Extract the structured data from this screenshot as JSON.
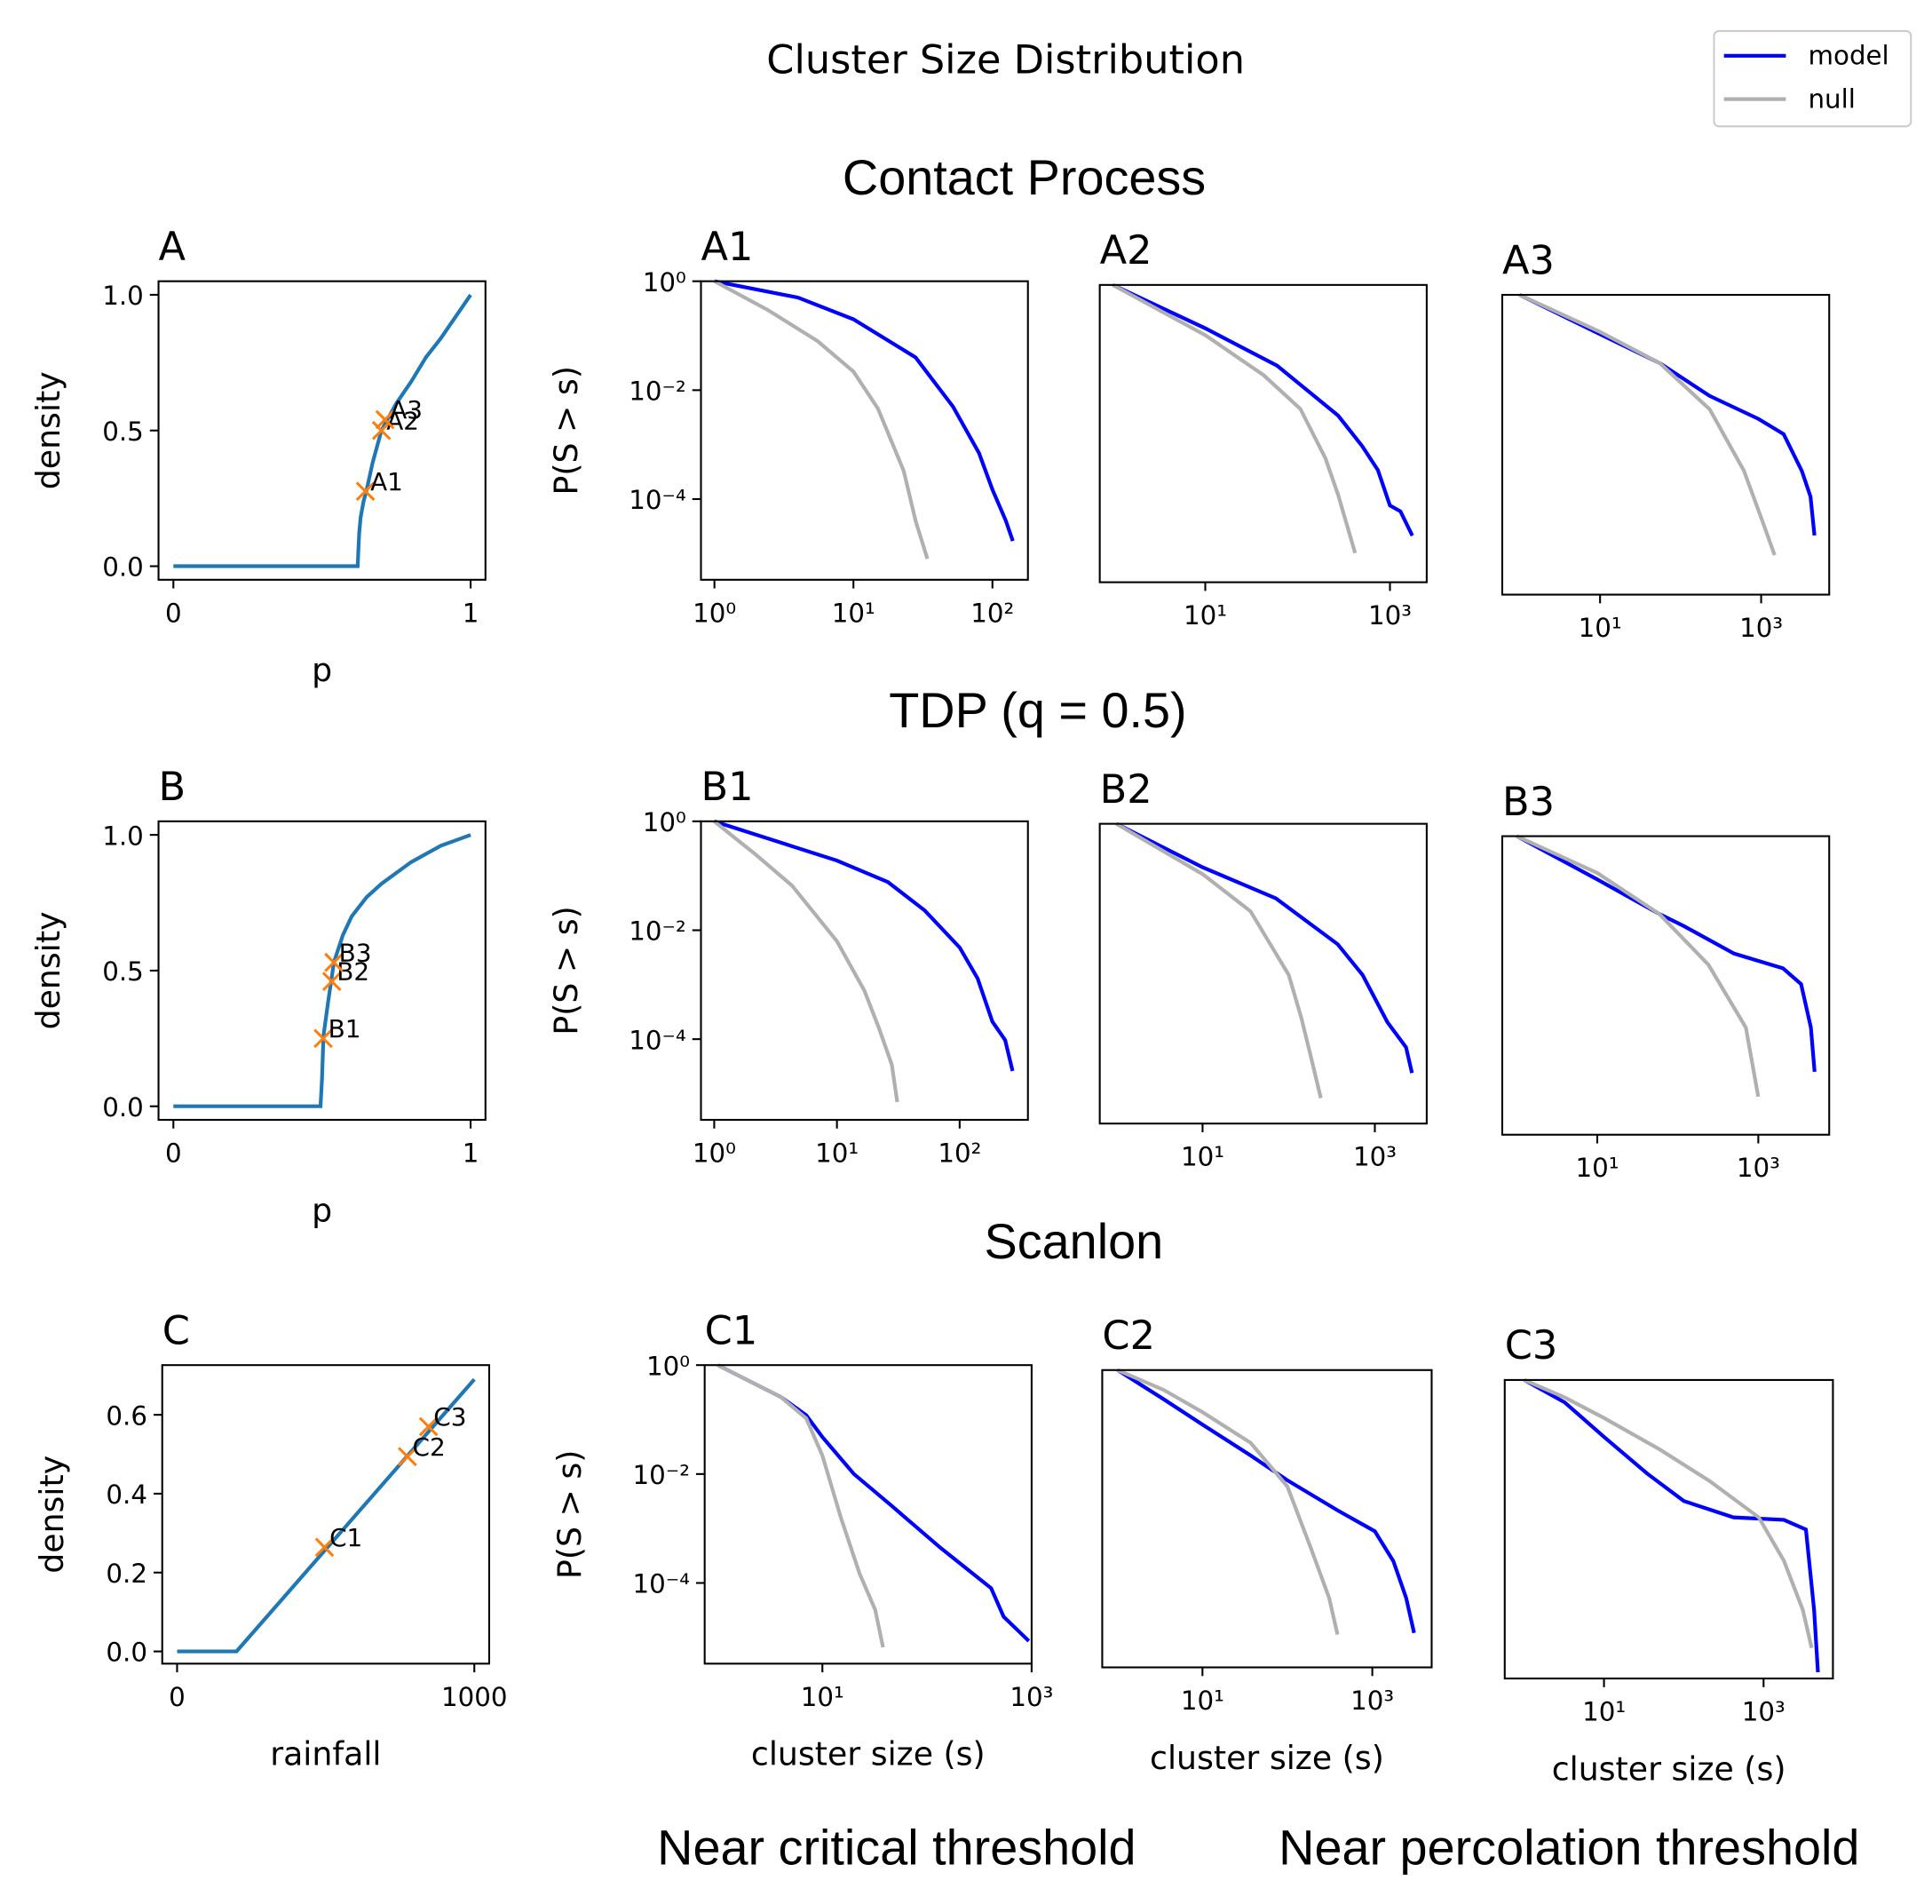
{
  "figure": {
    "title": "Cluster Size Distribution",
    "row_titles": [
      "Contact Process",
      "TDP (q = 0.5)",
      "Scanlon"
    ],
    "bottom_labels": [
      "Near critical threshold",
      "Near percolation threshold"
    ]
  },
  "chart_data": [
    {
      "type": "line",
      "title": "A",
      "xlabel": "p",
      "ylabel": "density",
      "xlim": [
        -0.05,
        1.05
      ],
      "ylim": [
        -0.05,
        1.05
      ],
      "xticks": [
        0,
        1
      ],
      "yticks": [
        {
          "value": 0,
          "label": "0.0"
        },
        0.5,
        {
          "value": 1,
          "label": "1.0"
        }
      ],
      "series": [
        {
          "color": "#1f77b4",
          "x": [
            0,
            0.62,
            0.625,
            0.63,
            0.64,
            0.65,
            0.67,
            0.7,
            0.75,
            0.8,
            0.85,
            0.9,
            0.95,
            1
          ],
          "values": [
            0,
            0,
            0.12,
            0.18,
            0.24,
            0.28,
            0.38,
            0.5,
            0.6,
            0.68,
            0.77,
            0.84,
            0.92,
            1.0
          ]
        }
      ],
      "markers": {
        "color": "#ff7f0e",
        "x": [
          0.646,
          0.7,
          0.712
        ],
        "values": [
          0.276,
          0.5,
          0.54
        ],
        "labels": [
          "A1",
          "A2",
          "A3"
        ]
      }
    },
    {
      "type": "loglog",
      "title": "A1",
      "ylabel": "P(S > s)",
      "xlim": [
        0.8,
        180
      ],
      "ylim": [
        3.3e-06,
        1
      ],
      "xticks": [
        {
          "value": 1,
          "label": "10⁰"
        },
        {
          "value": 10,
          "label": "10¹"
        },
        {
          "value": 100,
          "label": "10²"
        }
      ],
      "yticks": [
        {
          "value": 1,
          "label": "10⁰"
        },
        {
          "value": 0.01,
          "label": "10⁻²"
        },
        {
          "value": 0.0001,
          "label": "10⁻⁴"
        }
      ],
      "series": [
        {
          "name": "model",
          "color": "#0000ff",
          "x": [
            1,
            4,
            10,
            28,
            52,
            80,
            100,
            125,
            140
          ],
          "values": [
            1,
            0.5,
            0.2,
            0.04,
            0.005,
            0.0007,
            0.00015,
            4e-05,
            1.7e-05
          ]
        },
        {
          "name": "null",
          "color": "#b0b0b0",
          "x": [
            1,
            2.4,
            5.5,
            10,
            15,
            23,
            28,
            34
          ],
          "values": [
            1,
            0.3,
            0.08,
            0.022,
            0.0046,
            0.00033,
            4e-05,
            8e-06
          ]
        }
      ]
    },
    {
      "type": "loglog",
      "title": "A2",
      "xlim": [
        0.72,
        2500
      ],
      "ylim": [
        3.5e-06,
        1
      ],
      "xticks": [
        {
          "value": 10,
          "label": "10¹"
        },
        {
          "value": 1000,
          "label": "10³"
        }
      ],
      "series": [
        {
          "name": "model",
          "color": "#0000ff",
          "x": [
            1,
            10,
            60,
            275,
            500,
            740,
            1000,
            1300,
            1750
          ],
          "values": [
            1,
            0.16,
            0.033,
            0.004,
            0.0011,
            0.0004,
            9e-05,
            7e-05,
            2.5e-05
          ]
        },
        {
          "name": "null",
          "color": "#b0b0b0",
          "x": [
            1,
            10,
            43,
            107,
            200,
            275,
            420
          ],
          "values": [
            1,
            0.12,
            0.022,
            0.0053,
            0.00066,
            0.00014,
            1.2e-05
          ]
        }
      ]
    },
    {
      "type": "loglog",
      "title": "A3",
      "xlim": [
        0.61,
        7000
      ],
      "ylim": [
        3.2e-06,
        1
      ],
      "xticks": [
        {
          "value": 10,
          "label": "10¹"
        },
        {
          "value": 1000,
          "label": "10³"
        }
      ],
      "series": [
        {
          "name": "model",
          "color": "#0000ff",
          "x": [
            1,
            10,
            55,
            230,
            930,
            1900,
            3200,
            4100,
            4600
          ],
          "values": [
            1,
            0.19,
            0.056,
            0.014,
            0.0053,
            0.0028,
            0.00059,
            0.0002,
            3.9e-05
          ]
        },
        {
          "name": "null",
          "color": "#b0b0b0",
          "x": [
            1,
            10,
            55,
            230,
            610,
            1030,
            1470
          ],
          "values": [
            1,
            0.21,
            0.056,
            0.008,
            0.0006,
            7.3e-05,
            1.7e-05
          ]
        }
      ]
    },
    {
      "type": "line",
      "title": "B",
      "xlabel": "p",
      "ylabel": "density",
      "xlim": [
        -0.05,
        1.05
      ],
      "ylim": [
        -0.05,
        1.05
      ],
      "xticks": [
        0,
        1
      ],
      "yticks": [
        {
          "value": 0,
          "label": "0.0"
        },
        0.5,
        {
          "value": 1,
          "label": "1.0"
        }
      ],
      "series": [
        {
          "color": "#1f77b4",
          "x": [
            0,
            0.495,
            0.5,
            0.505,
            0.52,
            0.54,
            0.57,
            0.6,
            0.65,
            0.7,
            0.8,
            0.9,
            1
          ],
          "values": [
            0,
            0,
            0.1,
            0.26,
            0.38,
            0.53,
            0.63,
            0.7,
            0.77,
            0.82,
            0.9,
            0.96,
            1.0
          ]
        }
      ],
      "markers": {
        "color": "#ff7f0e",
        "x": [
          0.504,
          0.533,
          0.54
        ],
        "values": [
          0.25,
          0.46,
          0.53
        ],
        "labels": [
          "B1",
          "B2",
          "B3"
        ]
      }
    },
    {
      "type": "loglog",
      "title": "B1",
      "ylabel": "P(S > s)",
      "xlim": [
        0.78,
        360
      ],
      "ylim": [
        3.3e-06,
        1
      ],
      "xticks": [
        {
          "value": 1,
          "label": "10⁰"
        },
        {
          "value": 10,
          "label": "10¹"
        },
        {
          "value": 100,
          "label": "10²"
        }
      ],
      "yticks": [
        {
          "value": 1,
          "label": "10⁰"
        },
        {
          "value": 0.01,
          "label": "10⁻²"
        },
        {
          "value": 0.0001,
          "label": "10⁻⁴"
        }
      ],
      "series": [
        {
          "name": "model",
          "color": "#0000ff",
          "x": [
            1,
            10,
            26,
            52,
            100,
            140,
            185,
            235,
            270
          ],
          "values": [
            1,
            0.19,
            0.077,
            0.023,
            0.0048,
            0.0013,
            0.00021,
            9.6e-05,
            2.6e-05
          ]
        },
        {
          "name": "null",
          "color": "#b0b0b0",
          "x": [
            1,
            2.2,
            4.3,
            10,
            16.7,
            22,
            28,
            31
          ],
          "values": [
            1,
            0.24,
            0.066,
            0.0063,
            0.00078,
            0.00016,
            3.4e-05,
            7e-06
          ]
        }
      ]
    },
    {
      "type": "loglog",
      "title": "B2",
      "xlim": [
        0.64,
        4000
      ],
      "ylim": [
        3.2e-06,
        1
      ],
      "xticks": [
        {
          "value": 10,
          "label": "10¹"
        },
        {
          "value": 1000,
          "label": "10³"
        }
      ],
      "series": [
        {
          "name": "model",
          "color": "#0000ff",
          "x": [
            1,
            10,
            71,
            370,
            720,
            1400,
            2300,
            2700
          ],
          "values": [
            1,
            0.16,
            0.043,
            0.0062,
            0.0017,
            0.00023,
            8e-05,
            2.7e-05
          ]
        },
        {
          "name": "null",
          "color": "#b0b0b0",
          "x": [
            1,
            10,
            36,
            100,
            140,
            180,
            236
          ],
          "values": [
            1,
            0.12,
            0.025,
            0.0017,
            0.00028,
            5.6e-05,
            9.4e-06
          ]
        }
      ]
    },
    {
      "type": "loglog",
      "title": "B3",
      "xlim": [
        0.66,
        7600
      ],
      "ylim": [
        3.2e-06,
        1
      ],
      "xticks": [
        {
          "value": 10,
          "label": "10¹"
        },
        {
          "value": 1000,
          "label": "10³"
        }
      ],
      "series": [
        {
          "name": "model",
          "color": "#0000ff",
          "x": [
            1,
            10,
            59,
            120,
            500,
            2030,
            3400,
            4500,
            5000
          ],
          "values": [
            1,
            0.16,
            0.037,
            0.022,
            0.0069,
            0.0037,
            0.0019,
            0.0003,
            4.6e-05
          ]
        },
        {
          "name": "null",
          "color": "#b0b0b0",
          "x": [
            1,
            10,
            59,
            240,
            700,
            1000
          ],
          "values": [
            1,
            0.21,
            0.037,
            0.0043,
            0.0003,
            1.6e-05
          ]
        }
      ]
    },
    {
      "type": "line",
      "title": "C",
      "xlabel": "rainfall",
      "ylabel": "density",
      "xlim": [
        -50,
        1050
      ],
      "ylim": [
        -0.031,
        0.726
      ],
      "xticks": [
        0,
        1000
      ],
      "yticks": [
        {
          "value": 0,
          "label": "0.0"
        },
        0.2,
        0.4,
        0.6
      ],
      "series": [
        {
          "color": "#1f77b4",
          "x": [
            0,
            200,
            1000
          ],
          "values": [
            0,
            0,
            0.69
          ]
        }
      ],
      "markers": {
        "color": "#ff7f0e",
        "x": [
          496,
          775,
          846
        ],
        "values": [
          0.264,
          0.494,
          0.57
        ],
        "labels": [
          "C1",
          "C2",
          "C3"
        ]
      }
    },
    {
      "type": "loglog",
      "title": "C1",
      "ylabel": "P(S > s)",
      "xlabel": "cluster size (s)",
      "xlim": [
        0.75,
        1000
      ],
      "ylim": [
        3.3e-06,
        1
      ],
      "xticks": [
        {
          "value": 10,
          "label": "10¹"
        },
        {
          "value": 1000,
          "label": "10³"
        }
      ],
      "yticks": [
        {
          "value": 1,
          "label": "10⁰"
        },
        {
          "value": 0.01,
          "label": "10⁻²"
        },
        {
          "value": 0.0001,
          "label": "10⁻⁴"
        }
      ],
      "series": [
        {
          "name": "model",
          "color": "#0000ff",
          "x": [
            1,
            4,
            7,
            10,
            20,
            45,
            135,
            410,
            540,
            940
          ],
          "values": [
            1,
            0.26,
            0.12,
            0.048,
            0.01,
            0.0027,
            0.00044,
            8e-05,
            2.4e-05,
            8.6e-06
          ]
        },
        {
          "name": "null",
          "color": "#b0b0b0",
          "x": [
            1,
            4,
            7,
            10,
            15,
            22.6,
            32,
            38
          ],
          "values": [
            1,
            0.26,
            0.105,
            0.022,
            0.0016,
            0.00015,
            3.2e-05,
            6.6e-06
          ]
        }
      ]
    },
    {
      "type": "loglog",
      "title": "C2",
      "xlabel": "cluster size (s)",
      "xlim": [
        0.66,
        5000
      ],
      "ylim": [
        3.5e-06,
        1
      ],
      "xticks": [
        {
          "value": 10,
          "label": "10¹"
        },
        {
          "value": 1000,
          "label": "10³"
        }
      ],
      "series": [
        {
          "name": "model",
          "color": "#0000ff",
          "x": [
            1,
            3.5,
            10,
            37,
            100,
            400,
            1070,
            1770,
            2500,
            3100
          ],
          "values": [
            1,
            0.29,
            0.1,
            0.027,
            0.0095,
            0.0026,
            0.0011,
            0.00031,
            6.6e-05,
            1.5e-05
          ]
        },
        {
          "name": "null",
          "color": "#b0b0b0",
          "x": [
            1,
            3.5,
            10,
            37,
            100,
            190,
            310,
            390
          ],
          "values": [
            1,
            0.43,
            0.17,
            0.046,
            0.0073,
            0.00053,
            6.6e-05,
            1.4e-05
          ]
        }
      ]
    },
    {
      "type": "loglog",
      "title": "C3",
      "xlabel": "cluster size (s)",
      "xlim": [
        0.57,
        7400
      ],
      "ylim": [
        3.3e-06,
        1
      ],
      "xticks": [
        {
          "value": 10,
          "label": "10¹"
        },
        {
          "value": 1000,
          "label": "10³"
        }
      ],
      "series": [
        {
          "name": "model",
          "color": "#0000ff",
          "x": [
            1,
            3.2,
            10,
            35,
            100,
            420,
            1800,
            3400,
            4300,
            4800
          ],
          "values": [
            1,
            0.39,
            0.09,
            0.019,
            0.006,
            0.003,
            0.0027,
            0.0018,
            6e-05,
            4.3e-06
          ]
        },
        {
          "name": "null",
          "color": "#b0b0b0",
          "x": [
            1,
            3.2,
            10,
            50,
            210,
            870,
            1800,
            3100,
            4000
          ],
          "values": [
            1,
            0.48,
            0.2,
            0.053,
            0.014,
            0.003,
            0.00048,
            6e-05,
            1.2e-05
          ]
        }
      ]
    }
  ]
}
